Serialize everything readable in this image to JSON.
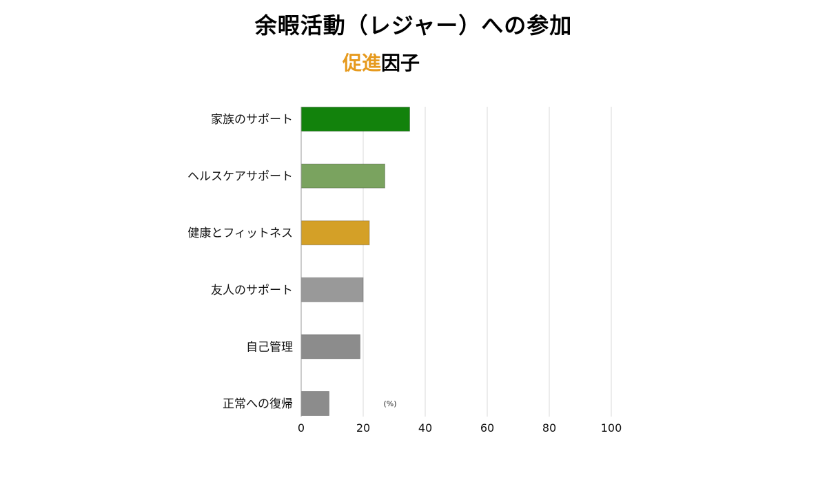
{
  "title": "余暇活動（レジャー）への参加",
  "subtitle": {
    "highlight": "促進",
    "rest": "因子"
  },
  "chart_data": {
    "type": "bar",
    "orientation": "horizontal",
    "categories": [
      "家族のサポート",
      "ヘルスケアサポート",
      "健康とフィットネス",
      "友人のサポート",
      "自己管理",
      "正常への復帰"
    ],
    "values": [
      35,
      27,
      22,
      20,
      19,
      9
    ],
    "colors": [
      "#12820c",
      "#7aa35f",
      "#d4a027",
      "#999999",
      "#8c8c8c",
      "#8c8c8c"
    ],
    "xlim": [
      0,
      100
    ],
    "xticks": [
      0,
      20,
      40,
      60,
      80,
      100
    ],
    "unit_label": "(%)",
    "grid": true
  }
}
